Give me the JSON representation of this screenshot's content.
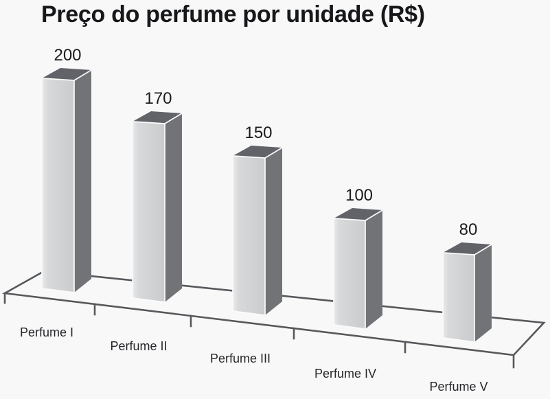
{
  "chart_data": {
    "type": "bar",
    "projection": "3d-perspective",
    "title": "Preço do perfume por unidade (R$)",
    "unit": "R$",
    "categories": [
      "Perfume I",
      "Perfume II",
      "Perfume III",
      "Perfume IV",
      "Perfume V"
    ],
    "values": [
      200,
      170,
      150,
      100,
      80
    ],
    "data_labels_shown": true,
    "xlabel": "",
    "ylabel": "",
    "legend": "none",
    "value_axis_shown": false,
    "grid": "off",
    "colors": {
      "background": "#f8f8f9",
      "bar_front_light": "#e9eaeb",
      "bar_front_mid": "#d6d7d9",
      "bar_front_dark": "#c9cbcd",
      "bar_side": "#717377",
      "bar_top": "#616368",
      "inner_edge": "#fbfbfb",
      "axis_line": "#57585b",
      "text": "#1a1b1d"
    }
  }
}
